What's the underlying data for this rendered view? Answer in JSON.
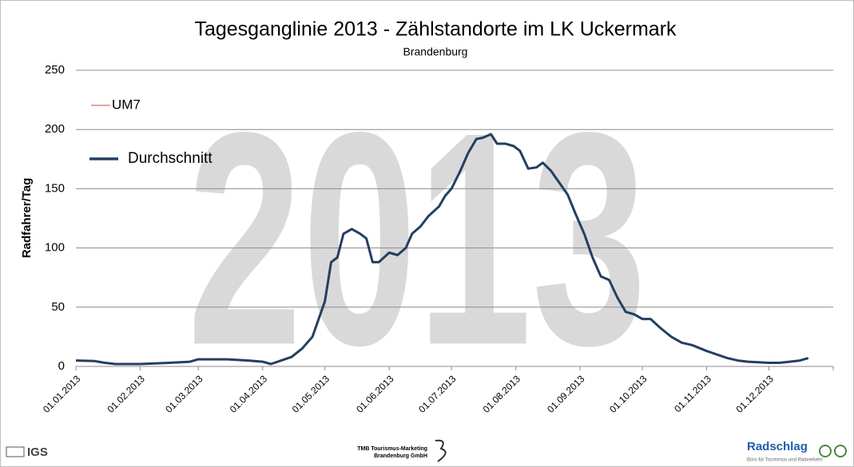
{
  "chart_data": {
    "type": "line",
    "title": "Tagesganglinie 2013 - Zählstandorte im LK Uckermark",
    "subtitle": "Brandenburg",
    "watermark": "2013",
    "y_label": "Radfahrer/Tag",
    "x": [
      "01.01.2013",
      "10.01.2013",
      "15.01.2013",
      "20.01.2013",
      "01.02.2013",
      "15.02.2013",
      "25.02.2013",
      "01.03.2013",
      "15.03.2013",
      "25.03.2013",
      "01.04.2013",
      "05.04.2013",
      "10.04.2013",
      "15.04.2013",
      "20.04.2013",
      "25.04.2013",
      "28.04.2013",
      "01.05.2013",
      "04.05.2013",
      "07.05.2013",
      "10.05.2013",
      "14.05.2013",
      "18.05.2013",
      "21.05.2013",
      "24.05.2013",
      "27.05.2013",
      "01.06.2013",
      "05.06.2013",
      "09.06.2013",
      "12.06.2013",
      "16.06.2013",
      "20.06.2013",
      "25.06.2013",
      "28.06.2013",
      "01.07.2013",
      "05.07.2013",
      "09.07.2013",
      "13.07.2013",
      "16.07.2013",
      "20.07.2013",
      "23.07.2013",
      "27.07.2013",
      "31.07.2013",
      "03.08.2013",
      "07.08.2013",
      "11.08.2013",
      "14.08.2013",
      "18.08.2013",
      "22.08.2013",
      "26.08.2013",
      "30.08.2013",
      "03.09.2013",
      "07.09.2013",
      "11.09.2013",
      "15.09.2013",
      "19.09.2013",
      "23.09.2013",
      "27.09.2013",
      "01.10.2013",
      "05.10.2013",
      "10.10.2013",
      "15.10.2013",
      "20.10.2013",
      "25.10.2013",
      "01.11.2013",
      "06.11.2013",
      "11.11.2013",
      "16.11.2013",
      "21.11.2013",
      "01.12.2013",
      "06.12.2013",
      "11.12.2013",
      "16.12.2013",
      "20.12.2013"
    ],
    "series": [
      {
        "name": "UM7",
        "color": "#e6a3a3",
        "values": [
          5,
          4.5,
          3,
          2,
          2,
          3,
          4,
          6,
          6,
          5,
          4,
          2,
          5,
          8,
          15,
          25,
          40,
          55,
          88,
          92,
          112,
          116,
          112,
          108,
          88,
          88,
          96,
          94,
          100,
          112,
          118,
          127,
          135,
          144,
          150,
          164,
          180,
          192,
          193,
          196,
          188,
          188,
          186,
          182,
          167,
          168,
          172,
          165,
          155,
          145,
          128,
          112,
          92,
          76,
          73,
          58,
          46,
          44,
          40,
          40,
          32,
          25,
          20,
          18,
          13,
          10,
          7,
          5,
          4,
          3,
          3,
          4,
          5,
          7
        ]
      },
      {
        "name": "Durchschnitt",
        "color": "#243f60",
        "values": [
          5,
          4.5,
          3,
          2,
          2,
          3,
          4,
          6,
          6,
          5,
          4,
          2,
          5,
          8,
          15,
          25,
          40,
          55,
          88,
          92,
          112,
          116,
          112,
          108,
          88,
          88,
          96,
          94,
          100,
          112,
          118,
          127,
          135,
          144,
          150,
          164,
          180,
          192,
          193,
          196,
          188,
          188,
          186,
          182,
          167,
          168,
          172,
          165,
          155,
          145,
          128,
          112,
          92,
          76,
          73,
          58,
          46,
          44,
          40,
          40,
          32,
          25,
          20,
          18,
          13,
          10,
          7,
          5,
          4,
          3,
          3,
          4,
          5,
          7
        ]
      }
    ],
    "xlim": [
      "01.01.2013",
      "31.12.2013"
    ],
    "xticks": [
      "01.01.2013",
      "01.02.2013",
      "01.03.2013",
      "01.04.2013",
      "01.05.2013",
      "01.06.2013",
      "01.07.2013",
      "01.08.2013",
      "01.09.2013",
      "01.10.2013",
      "01.11.2013",
      "01.12.2013"
    ],
    "ylim": [
      0,
      250
    ],
    "yticks": [
      0,
      50,
      100,
      150,
      200,
      250
    ],
    "grid": true,
    "legend": "upper left"
  },
  "footer": {
    "left_logo": "IGS",
    "center_logo_1": "TMB Tourismus-Marketing",
    "center_logo_2": "Brandenburg GmbH",
    "right_logo": "Radschlag",
    "right_logo_sub": "Büro für Tourismus und Radverkehr"
  }
}
